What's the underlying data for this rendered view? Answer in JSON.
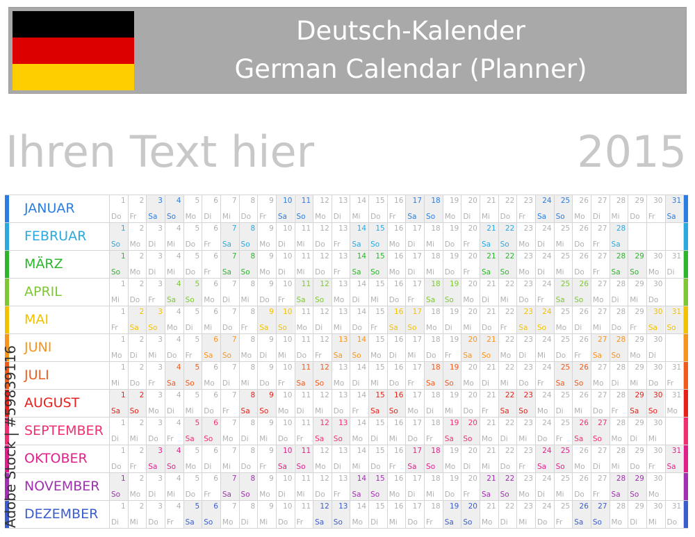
{
  "header": {
    "title_line1": "Deutsch-Kalender",
    "title_line2": "German Calendar (Planner)",
    "flag_colors": [
      "#000000",
      "#dd0000",
      "#ffce00"
    ]
  },
  "subtitle": "Ihren Text hier",
  "year": "2015",
  "weekday_labels": [
    "Mo",
    "Di",
    "Mi",
    "Do",
    "Fr",
    "Sa",
    "So"
  ],
  "months": [
    {
      "name": "JANUAR",
      "color": "#2a7de1",
      "days": 31,
      "first_weekday": "Do"
    },
    {
      "name": "FEBRUAR",
      "color": "#2ba8e0",
      "days": 28,
      "first_weekday": "So"
    },
    {
      "name": "MÄRZ",
      "color": "#2db52d",
      "days": 31,
      "first_weekday": "So"
    },
    {
      "name": "APRIL",
      "color": "#7dc832",
      "days": 30,
      "first_weekday": "Mi"
    },
    {
      "name": "MAI",
      "color": "#f2c200",
      "days": 31,
      "first_weekday": "Fr"
    },
    {
      "name": "JUNI",
      "color": "#f7941d",
      "days": 30,
      "first_weekday": "Mo"
    },
    {
      "name": "JULI",
      "color": "#f05a1a",
      "days": 31,
      "first_weekday": "Mi"
    },
    {
      "name": "AUGUST",
      "color": "#e8201a",
      "days": 31,
      "first_weekday": "Sa"
    },
    {
      "name": "SEPTEMBER",
      "color": "#f0306e",
      "days": 30,
      "first_weekday": "Di"
    },
    {
      "name": "OKTOBER",
      "color": "#e0208a",
      "days": 31,
      "first_weekday": "Do"
    },
    {
      "name": "NOVEMBER",
      "color": "#a030b0",
      "days": 30,
      "first_weekday": "So"
    },
    {
      "name": "DEZEMBER",
      "color": "#3a5ccc",
      "days": 31,
      "first_weekday": "Di"
    }
  ],
  "watermark": "Adobe Stock | #59839116"
}
